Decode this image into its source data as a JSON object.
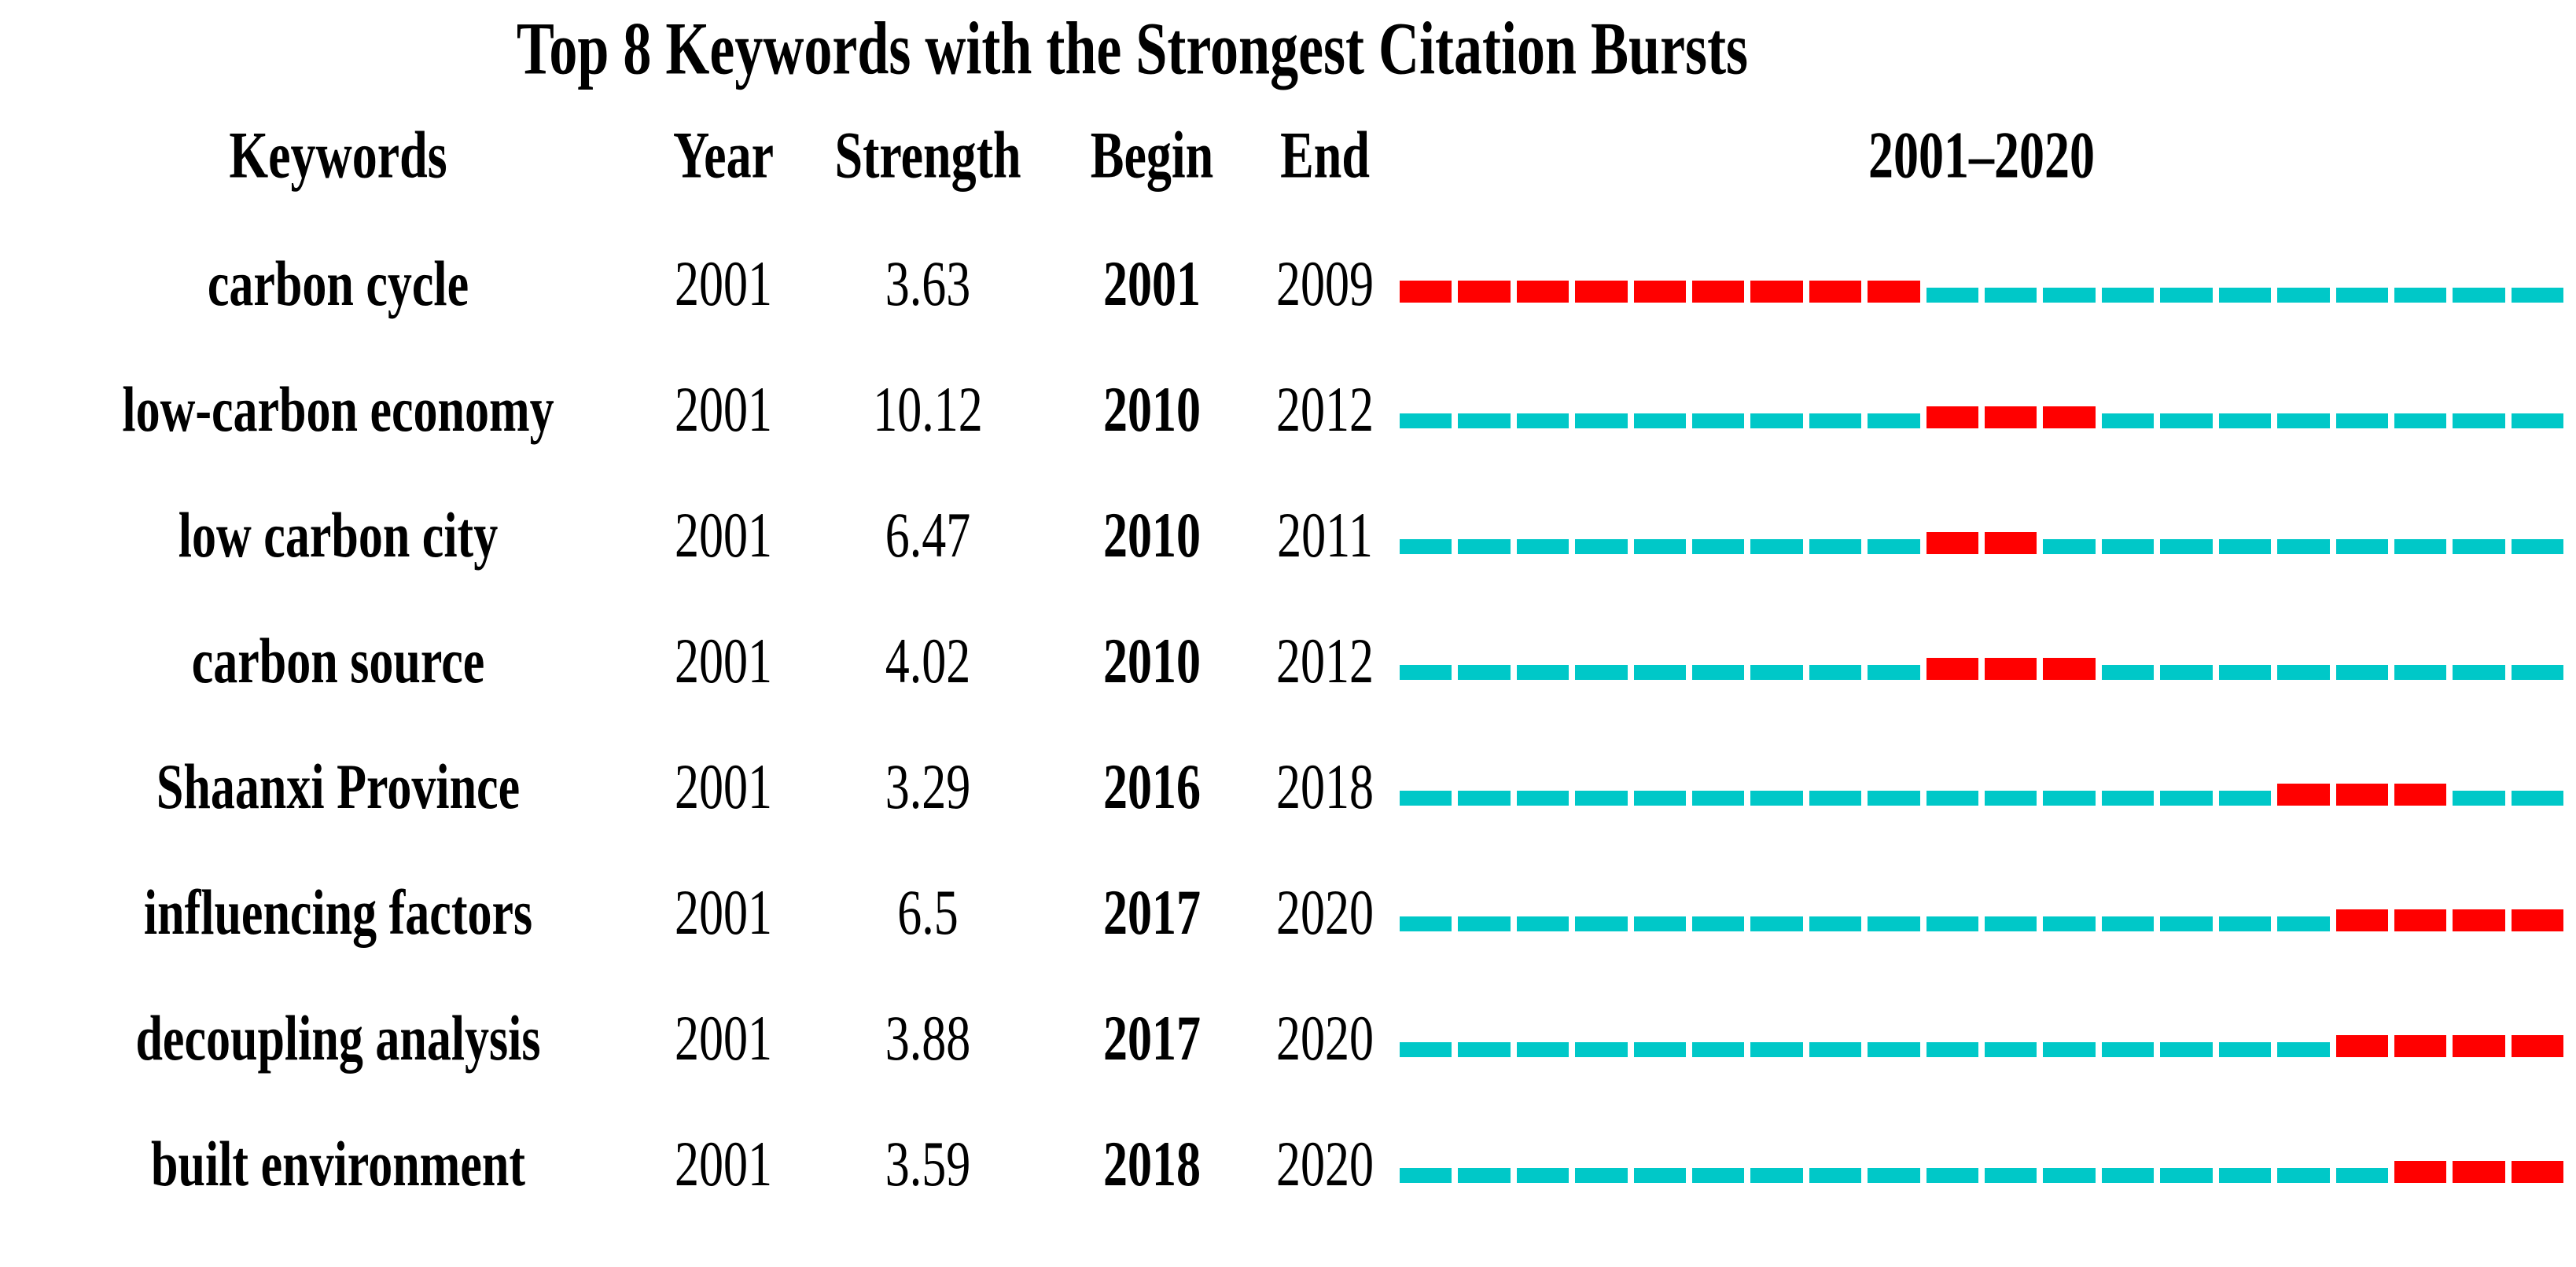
{
  "title": "Top 8 Keywords with the Strongest Citation Bursts",
  "header": {
    "keywords": "Keywords",
    "year": "Year",
    "strength": "Strength",
    "begin": "Begin",
    "end": "End",
    "timeline": "2001–2020"
  },
  "timeline": {
    "start_year": 2001,
    "end_year": 2020
  },
  "colors": {
    "burst": "#FF0000",
    "base": "#00C8C8",
    "text": "#000000",
    "background": "#FFFFFF"
  },
  "rows": [
    {
      "keyword": "carbon cycle",
      "year": "2001",
      "strength": "3.63",
      "begin": "2001",
      "end": "2009"
    },
    {
      "keyword": "low-carbon economy",
      "year": "2001",
      "strength": "10.12",
      "begin": "2010",
      "end": "2012"
    },
    {
      "keyword": "low carbon city",
      "year": "2001",
      "strength": "6.47",
      "begin": "2010",
      "end": "2011"
    },
    {
      "keyword": "carbon source",
      "year": "2001",
      "strength": "4.02",
      "begin": "2010",
      "end": "2012"
    },
    {
      "keyword": "Shaanxi Province",
      "year": "2001",
      "strength": "3.29",
      "begin": "2016",
      "end": "2018"
    },
    {
      "keyword": "influencing factors",
      "year": "2001",
      "strength": "6.5",
      "begin": "2017",
      "end": "2020"
    },
    {
      "keyword": "decoupling analysis",
      "year": "2001",
      "strength": "3.88",
      "begin": "2017",
      "end": "2020"
    },
    {
      "keyword": "built environment",
      "year": "2001",
      "strength": "3.59",
      "begin": "2018",
      "end": "2020"
    }
  ],
  "chart_data": {
    "type": "table",
    "title": "Top 8 Keywords with the Strongest Citation Bursts",
    "columns": [
      "Keywords",
      "Year",
      "Strength",
      "Begin",
      "End",
      "2001–2020"
    ],
    "timeline_range": [
      2001,
      2020
    ],
    "segments_per_row": 20,
    "burst_color": "#FF0000",
    "non_burst_color": "#00C8C8",
    "rows": [
      {
        "keyword": "carbon cycle",
        "year": 2001,
        "strength": 3.63,
        "burst_begin": 2001,
        "burst_end": 2009
      },
      {
        "keyword": "low-carbon economy",
        "year": 2001,
        "strength": 10.12,
        "burst_begin": 2010,
        "burst_end": 2012
      },
      {
        "keyword": "low carbon city",
        "year": 2001,
        "strength": 6.47,
        "burst_begin": 2010,
        "burst_end": 2011
      },
      {
        "keyword": "carbon source",
        "year": 2001,
        "strength": 4.02,
        "burst_begin": 2010,
        "burst_end": 2012
      },
      {
        "keyword": "Shaanxi Province",
        "year": 2001,
        "strength": 3.29,
        "burst_begin": 2016,
        "burst_end": 2018
      },
      {
        "keyword": "influencing factors",
        "year": 2001,
        "strength": 6.5,
        "burst_begin": 2017,
        "burst_end": 2020
      },
      {
        "keyword": "decoupling analysis",
        "year": 2001,
        "strength": 3.88,
        "burst_begin": 2017,
        "burst_end": 2020
      },
      {
        "keyword": "built environment",
        "year": 2001,
        "strength": 3.59,
        "burst_begin": 2018,
        "burst_end": 2020
      }
    ]
  }
}
